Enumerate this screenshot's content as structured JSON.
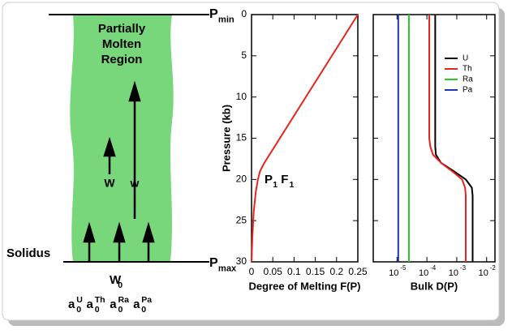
{
  "diagram": {
    "region_label_lines": [
      "Partially",
      "Molten",
      "Region"
    ],
    "solidus": "Solidus",
    "small_arrow_label": "W",
    "big_arrow_label": "w",
    "inflow_label": {
      "base": "W",
      "sub": "0"
    },
    "initial_activities": [
      {
        "base": "a",
        "sub": "0",
        "sup": "U"
      },
      {
        "base": "a",
        "sub": "0",
        "sup": "Th"
      },
      {
        "base": "a",
        "sub": "0",
        "sup": "Ra"
      },
      {
        "base": "a",
        "sub": "0",
        "sup": "Pa"
      }
    ],
    "p_min": {
      "base": "P",
      "sub": "min"
    },
    "p_max": {
      "base": "P",
      "sub": "max"
    }
  },
  "chart_data": [
    {
      "type": "line",
      "x_label": "Degree of Melting F(P)",
      "y_label": "Pressure (kb)",
      "annotation": [
        {
          "base": "P",
          "sub": "1"
        },
        {
          "base": "F",
          "sub": "1"
        }
      ],
      "x": [
        0,
        0.002,
        0.005,
        0.01,
        0.015,
        0.02,
        0.03,
        0.25
      ],
      "values": [
        30,
        27,
        24,
        21.5,
        20,
        19,
        18,
        0
      ],
      "color": "#e8231e",
      "xlim": [
        0,
        0.25
      ],
      "xticks": [
        0,
        0.05,
        0.1,
        0.15,
        0.2,
        0.25
      ],
      "ylim": [
        0,
        30
      ],
      "yticks": [
        0,
        5,
        10,
        15,
        20,
        25,
        30
      ],
      "y_inverted": true
    },
    {
      "type": "profile",
      "x_label": "Bulk D(P)",
      "x_scale": "log",
      "xlim": [
        1.6e-06,
        0.019
      ],
      "xticks": [
        {
          "value": 1e-05,
          "label": "10",
          "exponent": "-5"
        },
        {
          "value": 0.0001,
          "label": "10",
          "exponent": "-4"
        },
        {
          "value": 0.001,
          "label": "10",
          "exponent": "-3"
        },
        {
          "value": 0.01,
          "label": "10",
          "exponent": "-2"
        }
      ],
      "ylim": [
        0,
        30
      ],
      "yticks": [
        0,
        5,
        10,
        15,
        20,
        25,
        30
      ],
      "y_inverted": true,
      "y": [
        0,
        15,
        16,
        17,
        18,
        19,
        20,
        21,
        22,
        25,
        30
      ],
      "legend": "upper right",
      "series": [
        {
          "name": "U",
          "color": "#000000",
          "values": [
            0.00019,
            0.00019,
            0.00019,
            0.0002,
            0.0003,
            0.0008,
            0.002,
            0.0032,
            0.0034,
            0.0034,
            0.0034
          ]
        },
        {
          "name": "Th",
          "color": "#e8231e",
          "values": [
            0.00012,
            0.00012,
            0.00013,
            0.00016,
            0.0003,
            0.0007,
            0.0015,
            0.0019,
            0.002,
            0.002,
            0.002
          ]
        },
        {
          "name": "Ra",
          "color": "#22cc22",
          "values": [
            2.5e-05,
            2.5e-05,
            2.5e-05,
            2.5e-05,
            2.5e-05,
            2.5e-05,
            2.5e-05,
            2.5e-05,
            2.5e-05,
            2.5e-05,
            2.5e-05
          ]
        },
        {
          "name": "Pa",
          "color": "#2233bb",
          "values": [
            1.1e-05,
            1.1e-05,
            1.1e-05,
            1.1e-05,
            1.1e-05,
            1.1e-05,
            1.1e-05,
            1.1e-05,
            1.1e-05,
            1.1e-05,
            1.1e-05
          ]
        }
      ]
    }
  ]
}
